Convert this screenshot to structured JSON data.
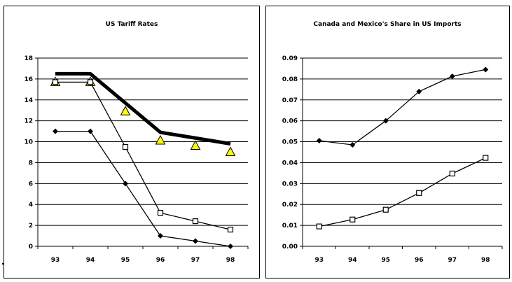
{
  "chart_data": [
    {
      "type": "line",
      "title": "US Tariff Rates",
      "categories": [
        "93",
        "94",
        "95",
        "96",
        "97",
        "98"
      ],
      "ylim": [
        0,
        18
      ],
      "yticks": [
        "0",
        "2",
        "4",
        "6",
        "8",
        "10",
        "12",
        "14",
        "16",
        "18"
      ],
      "grid": true,
      "legend": "none",
      "series": [
        {
          "marker": "none",
          "style": "thick",
          "color": "#000000",
          "values": [
            16.5,
            16.5,
            null,
            10.9,
            null,
            9.8
          ]
        },
        {
          "marker": "triangle",
          "style": "none",
          "color": "#ffff00",
          "values": [
            15.7,
            15.7,
            12.9,
            10.1,
            9.6,
            9.0
          ]
        },
        {
          "marker": "square",
          "style": "thin",
          "color": "#000000",
          "values": [
            15.7,
            15.7,
            9.5,
            3.2,
            2.4,
            1.6
          ]
        },
        {
          "marker": "diamond",
          "style": "thin",
          "color": "#000000",
          "values": [
            11.0,
            11.0,
            6.0,
            1.0,
            0.5,
            0.0
          ]
        }
      ]
    },
    {
      "type": "line",
      "title": "Canada and Mexico's Share in US Imports",
      "categories": [
        "93",
        "94",
        "95",
        "96",
        "97",
        "98"
      ],
      "ylim": [
        0,
        0.09
      ],
      "yticks": [
        "0.00",
        "0.01",
        "0.02",
        "0.03",
        "0.04",
        "0.05",
        "0.06",
        "0.07",
        "0.08",
        "0.09"
      ],
      "grid": true,
      "legend": "none",
      "series": [
        {
          "marker": "diamond",
          "style": "thin",
          "color": "#000000",
          "values": [
            0.0505,
            0.0485,
            0.06,
            0.074,
            0.0813,
            0.0845
          ]
        },
        {
          "marker": "square",
          "style": "thin",
          "color": "#000000",
          "values": [
            0.0095,
            0.0128,
            0.0175,
            0.0255,
            0.0348,
            0.0423
          ]
        }
      ]
    }
  ]
}
